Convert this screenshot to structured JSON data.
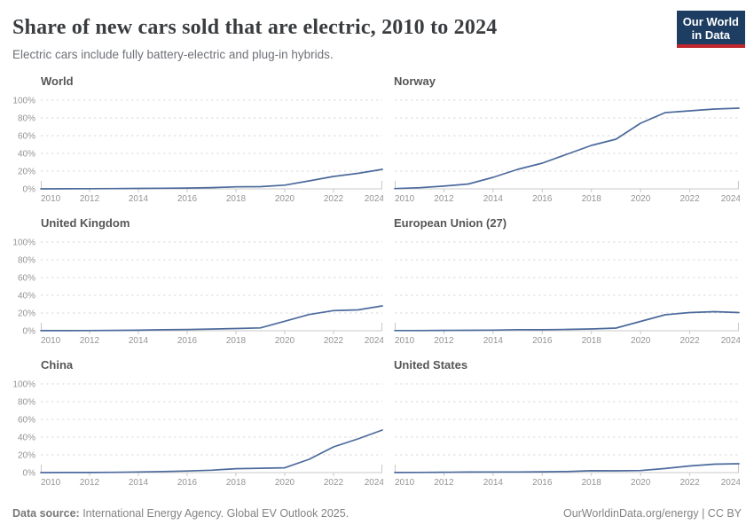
{
  "header": {
    "title": "Share of new cars sold that are electric, 2010 to 2024",
    "subtitle": "Electric cars include fully battery-electric and plug-in hybrids.",
    "logo": {
      "line1": "Our World",
      "line2": "in Data"
    }
  },
  "footer": {
    "source_label": "Data source:",
    "source_text": " International Energy Agency. Global EV Outlook 2025.",
    "right_url": "OurWorldinData.org/energy",
    "right_license": " | CC BY"
  },
  "colors": {
    "line": "#4c6a9c",
    "grid": "#d9d9d9",
    "axis": "#c8c8c8",
    "tick_label": "#949494",
    "logo_bg": "#1d3d63",
    "logo_accent": "#c0262d"
  },
  "chart_data": {
    "type": "line",
    "title": "Share of new cars sold that are electric, 2010 to 2024",
    "subtitle": "Electric cars include fully battery-electric and plug-in hybrids.",
    "layout": "small multiples, 2 columns x 3 rows, shared y axis labels on left column only",
    "grid": "horizontal dashed gridlines",
    "legend_position": "none",
    "unit": "%",
    "x": [
      2010,
      2011,
      2012,
      2013,
      2014,
      2015,
      2016,
      2017,
      2018,
      2019,
      2020,
      2021,
      2022,
      2023,
      2024
    ],
    "x_tick_years": [
      2010,
      2012,
      2014,
      2016,
      2018,
      2020,
      2022,
      2024
    ],
    "y_ticks": [
      0,
      20,
      40,
      60,
      80,
      100
    ],
    "y_tick_labels": [
      "0%",
      "20%",
      "40%",
      "60%",
      "80%",
      "100%"
    ],
    "ylim": [
      0,
      100
    ],
    "line_color": "#4c6a9c",
    "series": [
      {
        "name": "World",
        "values": [
          0.01,
          0.1,
          0.2,
          0.3,
          0.5,
          0.7,
          0.9,
          1.4,
          2.3,
          2.5,
          4.2,
          9,
          14,
          17.5,
          22
        ]
      },
      {
        "name": "Norway",
        "values": [
          0.3,
          1.3,
          3.1,
          5.5,
          13,
          22,
          29,
          39,
          49,
          56,
          74,
          86,
          88,
          90,
          91
        ]
      },
      {
        "name": "United Kingdom",
        "values": [
          0.1,
          0.1,
          0.2,
          0.4,
          0.6,
          1.1,
          1.4,
          1.9,
          2.5,
          3.2,
          10.7,
          18.3,
          22.7,
          23.5,
          28
        ]
      },
      {
        "name": "European Union (27)",
        "values": [
          0.2,
          0.2,
          0.4,
          0.5,
          0.7,
          1.2,
          1.1,
          1.5,
          2.0,
          3.0,
          10.5,
          18,
          20.5,
          21.5,
          20.5
        ]
      },
      {
        "name": "China",
        "values": [
          0.0,
          0.1,
          0.1,
          0.3,
          0.7,
          1.2,
          1.8,
          2.7,
          4.4,
          4.9,
          5.4,
          15,
          29,
          38,
          48
        ]
      },
      {
        "name": "United States",
        "values": [
          0.1,
          0.2,
          0.4,
          0.6,
          0.7,
          0.7,
          0.9,
          1.2,
          2.1,
          2.0,
          2.3,
          4.6,
          7.5,
          9.5,
          10
        ]
      }
    ]
  }
}
